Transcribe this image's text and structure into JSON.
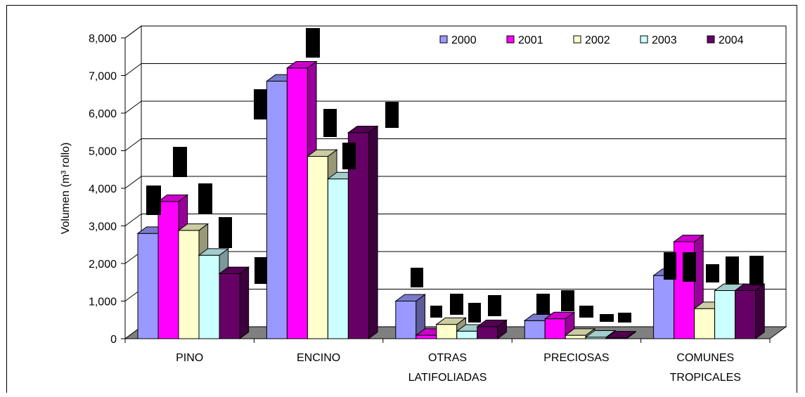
{
  "chart_data": {
    "type": "bar",
    "title": "",
    "ylabel": "Volumen (m³ rollo)",
    "xlabel": "",
    "ylim": [
      0,
      8000
    ],
    "yticks": [
      0,
      1000,
      2000,
      3000,
      4000,
      5000,
      6000,
      7000,
      8000
    ],
    "ytick_labels": [
      "0",
      "1,000",
      "2,000",
      "3,000",
      "4,000",
      "5,000",
      "6,000",
      "7,000",
      "8,000"
    ],
    "grid": true,
    "three_d": true,
    "legend_position": "top-right",
    "categories": [
      [
        "PINO"
      ],
      [
        "ENCINO"
      ],
      [
        "OTRAS",
        "LATIFOLIADAS"
      ],
      [
        "PRECIOSAS"
      ],
      [
        "COMUNES",
        "TROPICALES"
      ]
    ],
    "series": [
      {
        "name": "2000",
        "color": "#9999ff",
        "values": [
          2800,
          6850,
          1000,
          480,
          1680
        ]
      },
      {
        "name": "2001",
        "color": "#ff00ff",
        "values": [
          3650,
          7200,
          90,
          530,
          2580
        ]
      },
      {
        "name": "2002",
        "color": "#ffffcc",
        "values": [
          2880,
          4850,
          380,
          90,
          800
        ]
      },
      {
        "name": "2003",
        "color": "#ccffff",
        "values": [
          2220,
          4250,
          200,
          40,
          1280
        ]
      },
      {
        "name": "2004",
        "color": "#660066",
        "values": [
          1730,
          5480,
          320,
          20,
          1280
        ]
      }
    ]
  }
}
